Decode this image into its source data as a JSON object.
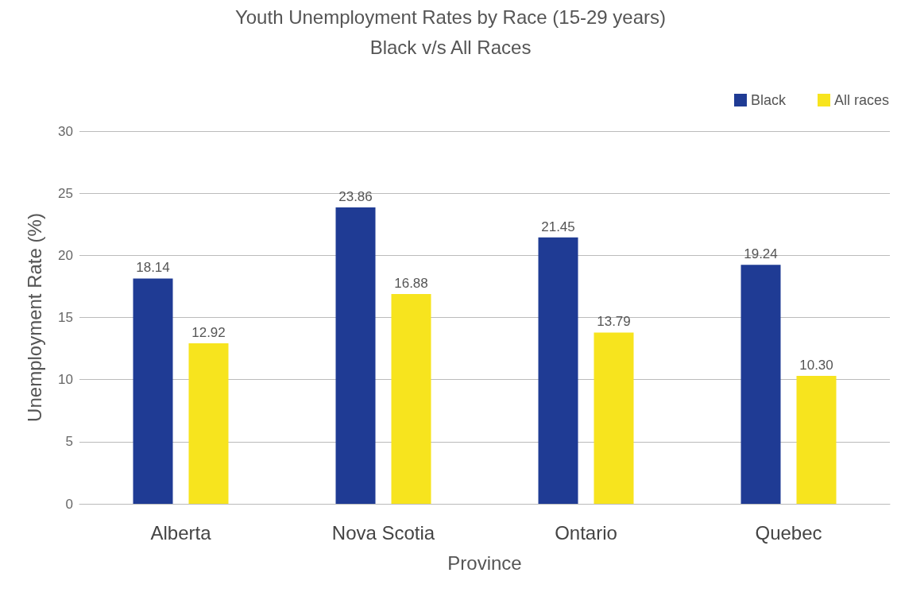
{
  "chart_data": {
    "type": "bar",
    "title": "Youth Unemployment Rates by Race (15-29 years)",
    "subtitle": "Black v/s All Races",
    "xlabel": "Province",
    "ylabel": "Unemployment Rate (%)",
    "categories": [
      "Alberta",
      "Nova Scotia",
      "Ontario",
      "Quebec"
    ],
    "series": [
      {
        "name": "Black",
        "color": "#1f3b94",
        "values": [
          18.14,
          23.86,
          21.45,
          19.24
        ],
        "value_labels": [
          "18.14",
          "23.86",
          "21.45",
          "19.24"
        ]
      },
      {
        "name": "All races",
        "color": "#f7e41e",
        "values": [
          12.92,
          16.88,
          13.79,
          10.3
        ],
        "value_labels": [
          "12.92",
          "16.88",
          "13.79",
          "10.30"
        ]
      }
    ],
    "ylim": [
      0,
      30
    ],
    "yticks": [
      0,
      5,
      10,
      15,
      20,
      25,
      30
    ],
    "grid": "y",
    "legend": "top right"
  }
}
